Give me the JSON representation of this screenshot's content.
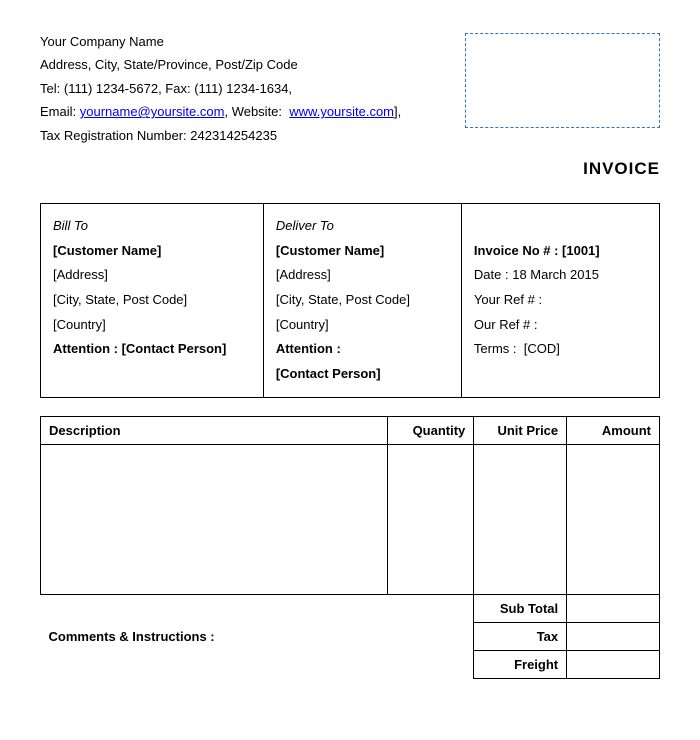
{
  "company": {
    "name": "Your Company Name",
    "address": "Address, City, State/Province, Post/Zip Code",
    "tel_label": "Tel:",
    "tel": "(111) 1234-5672",
    "fax_label": "Fax:",
    "fax": "(111) 1234-1634",
    "email_label": "Email:",
    "email": "yourname@yoursite.com",
    "website_label": "Website:",
    "website": "www.yoursite.com",
    "tax_reg_label": "Tax Registration Number:",
    "tax_reg": "242314254235"
  },
  "doc": {
    "title": "INVOICE"
  },
  "bill_to": {
    "heading": "Bill To",
    "customer": "[Customer Name]",
    "address": "[Address]",
    "city": "[City, State, Post Code]",
    "country": "[Country]",
    "attention_label": "Attention :  ",
    "attention": "[Contact Person]"
  },
  "deliver_to": {
    "heading": "Deliver To",
    "customer": "[Customer Name]",
    "address": "[Address]",
    "city": "[City, State, Post Code]",
    "country": "[Country]",
    "attention_label": "Attention :",
    "attention": "[Contact Person]"
  },
  "meta": {
    "invoice_no_label": "Invoice No # : [1001]",
    "date_label": "Date :",
    "date": "18 March 2015",
    "your_ref_label": "Your Ref # :",
    "our_ref_label": "Our Ref # :",
    "terms_label": "Terms :",
    "terms": "[COD]"
  },
  "columns": {
    "description": "Description",
    "quantity": "Quantity",
    "unit_price": "Unit Price",
    "amount": "Amount"
  },
  "totals": {
    "sub_total": "Sub Total",
    "tax": "Tax",
    "freight": "Freight"
  },
  "comments_label": "Comments & Instructions :"
}
